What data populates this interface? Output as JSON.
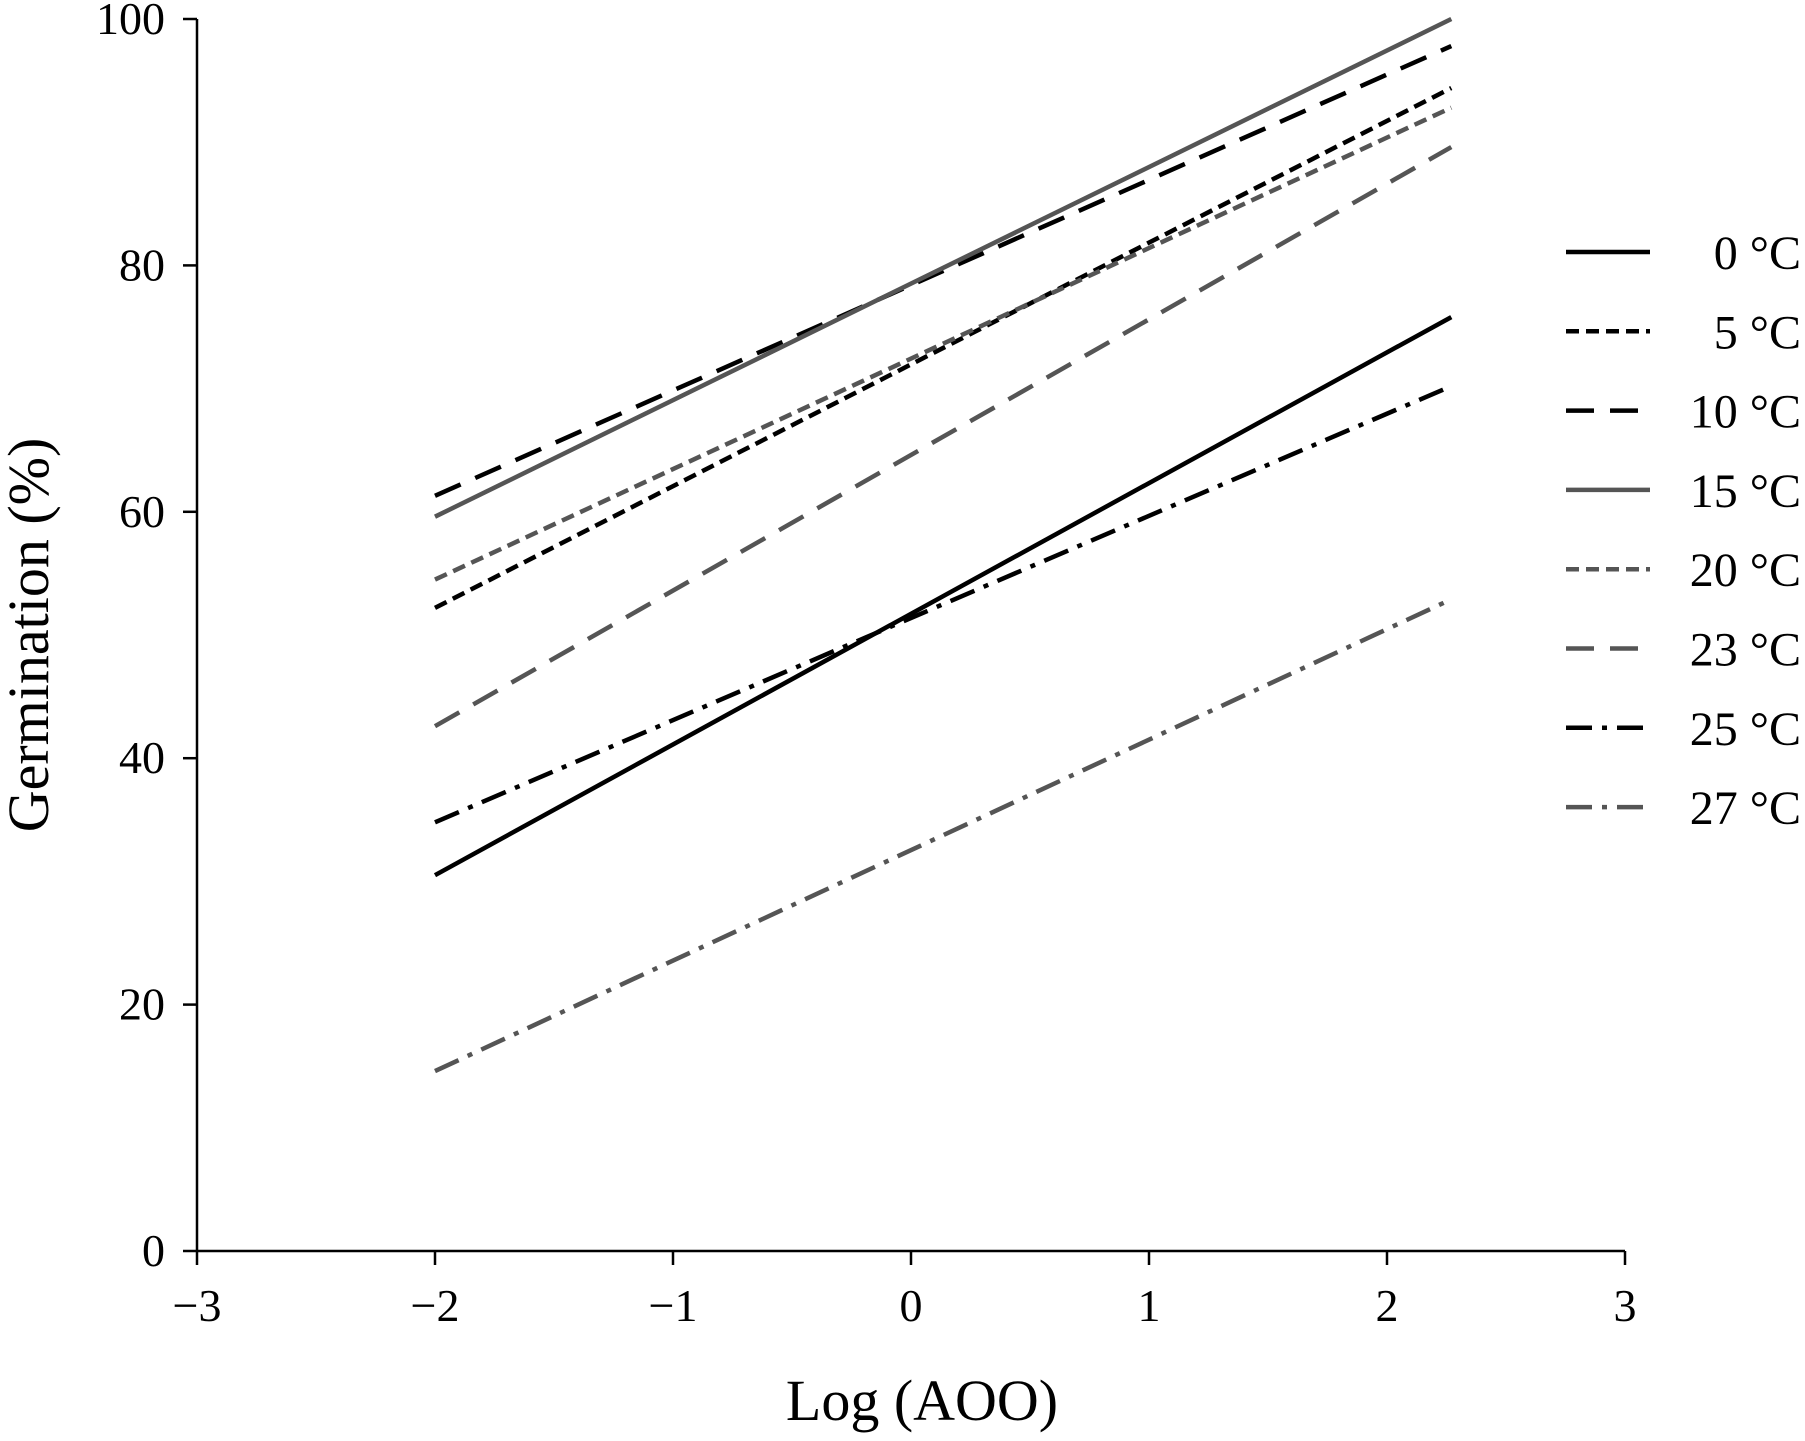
{
  "chart_data": {
    "type": "line",
    "title": "",
    "xlabel": "Log (AOO)",
    "ylabel": "Germination (%)",
    "xlim": [
      -3,
      3
    ],
    "ylim": [
      0,
      100
    ],
    "xticks": [
      -3,
      -2,
      -1,
      0,
      1,
      2,
      3
    ],
    "yticks": [
      0,
      20,
      40,
      60,
      80,
      100
    ],
    "xtick_labels": [
      "−3",
      "−2",
      "−1",
      "0",
      "1",
      "2",
      "3"
    ],
    "ytick_labels": [
      "0",
      "20",
      "40",
      "60",
      "80",
      "100"
    ],
    "grid": false,
    "legend_position": "right",
    "series": [
      {
        "name": "0 °C",
        "x": [
          -2,
          2.27
        ],
        "y": [
          30.5,
          75.8
        ],
        "color": "#000000",
        "dash": "solid"
      },
      {
        "name": "5 °C",
        "x": [
          -2,
          2.27
        ],
        "y": [
          52.2,
          94.4
        ],
        "color": "#000000",
        "dash": "short-dash"
      },
      {
        "name": "10 °C",
        "x": [
          -2,
          2.27
        ],
        "y": [
          61.3,
          97.8
        ],
        "color": "#000000",
        "dash": "long-dash"
      },
      {
        "name": "15 °C",
        "x": [
          -2,
          2.27
        ],
        "y": [
          59.6,
          100.0
        ],
        "color": "#555555",
        "dash": "solid"
      },
      {
        "name": "20 °C",
        "x": [
          -2,
          2.27
        ],
        "y": [
          54.5,
          92.8
        ],
        "color": "#555555",
        "dash": "short-dash"
      },
      {
        "name": "23 °C",
        "x": [
          -2,
          2.27
        ],
        "y": [
          42.6,
          89.6
        ],
        "color": "#555555",
        "dash": "long-dash"
      },
      {
        "name": "25 °C",
        "x": [
          -2,
          2.27
        ],
        "y": [
          34.8,
          70.2
        ],
        "color": "#000000",
        "dash": "dash-dot"
      },
      {
        "name": "27 °C",
        "x": [
          -2,
          2.27
        ],
        "y": [
          14.6,
          52.9
        ],
        "color": "#555555",
        "dash": "dash-dot"
      }
    ]
  }
}
